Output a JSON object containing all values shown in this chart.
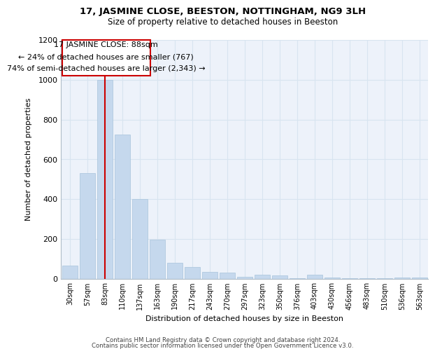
{
  "title1": "17, JASMINE CLOSE, BEESTON, NOTTINGHAM, NG9 3LH",
  "title2": "Size of property relative to detached houses in Beeston",
  "xlabel": "Distribution of detached houses by size in Beeston",
  "ylabel": "Number of detached properties",
  "categories": [
    "30sqm",
    "57sqm",
    "83sqm",
    "110sqm",
    "137sqm",
    "163sqm",
    "190sqm",
    "217sqm",
    "243sqm",
    "270sqm",
    "297sqm",
    "323sqm",
    "350sqm",
    "376sqm",
    "403sqm",
    "430sqm",
    "456sqm",
    "483sqm",
    "510sqm",
    "536sqm",
    "563sqm"
  ],
  "values": [
    65,
    530,
    1000,
    725,
    400,
    195,
    80,
    60,
    35,
    30,
    10,
    18,
    15,
    2,
    20,
    5,
    2,
    1,
    1,
    5,
    5
  ],
  "bar_color": "#c5d8ed",
  "bar_edge_color": "#a8c4dc",
  "annotation_box_edge": "#cc0000",
  "annotation_line_color": "#cc0000",
  "annotation_text_line1": "17 JASMINE CLOSE: 88sqm",
  "annotation_text_line2": "← 24% of detached houses are smaller (767)",
  "annotation_text_line3": "74% of semi-detached houses are larger (2,343) →",
  "property_bar_index": 2,
  "ylim": [
    0,
    1200
  ],
  "yticks": [
    0,
    200,
    400,
    600,
    800,
    1000,
    1200
  ],
  "footer1": "Contains HM Land Registry data © Crown copyright and database right 2024.",
  "footer2": "Contains public sector information licensed under the Open Government Licence v3.0.",
  "grid_color": "#d8e4f0",
  "bg_color": "#edf2fa"
}
